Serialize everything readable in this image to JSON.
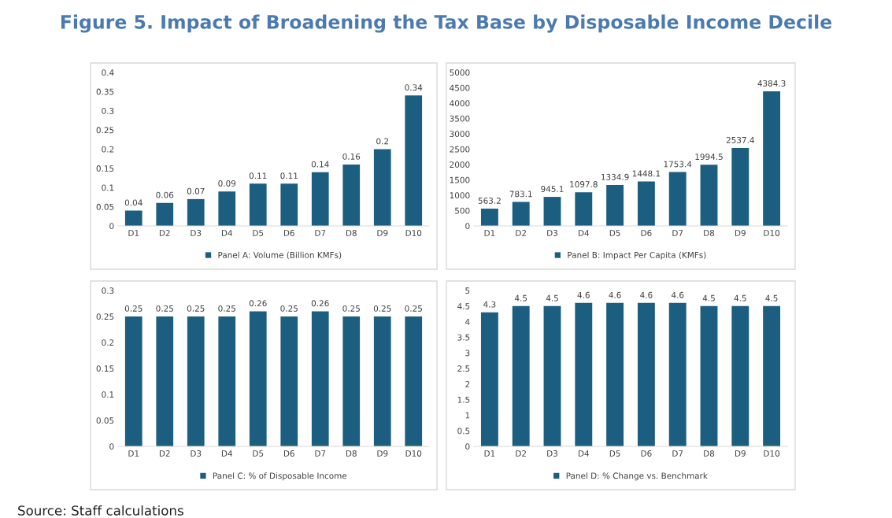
{
  "chart_data": [
    {
      "type": "bar",
      "title": "Figure 5. Impact of Broadening the Tax Base by Disposable Income Decile",
      "categories": [
        "D1",
        "D2",
        "D3",
        "D4",
        "D5",
        "D6",
        "D7",
        "D8",
        "D9",
        "D10"
      ],
      "series": [
        {
          "name": "Panel A: Volume (Billion KMFs)",
          "color": "#1b5e80",
          "values": [
            0.04,
            0.06,
            0.07,
            0.09,
            0.11,
            0.11,
            0.14,
            0.16,
            0.2,
            0.34
          ]
        }
      ],
      "ylim": [
        0,
        0.4
      ],
      "yticks": [
        0,
        0.05,
        0.1,
        0.15,
        0.2,
        0.25,
        0.3,
        0.35,
        0.4
      ],
      "data_labels": true,
      "legend": "bottom",
      "grid": false
    },
    {
      "type": "bar",
      "categories": [
        "D1",
        "D2",
        "D3",
        "D4",
        "D5",
        "D6",
        "D7",
        "D8",
        "D9",
        "D10"
      ],
      "series": [
        {
          "name": "Panel B: Impact Per Capita (KMFs)",
          "color": "#1b5e80",
          "values": [
            563.2,
            783.1,
            945.1,
            1097.8,
            1334.9,
            1448.1,
            1753.4,
            1994.5,
            2537.4,
            4384.3
          ]
        }
      ],
      "ylim": [
        0,
        5000
      ],
      "yticks": [
        0,
        500,
        1000,
        1500,
        2000,
        2500,
        3000,
        3500,
        4000,
        4500,
        5000
      ],
      "data_labels": true,
      "legend": "bottom",
      "grid": false
    },
    {
      "type": "bar",
      "categories": [
        "D1",
        "D2",
        "D3",
        "D4",
        "D5",
        "D6",
        "D7",
        "D8",
        "D9",
        "D10"
      ],
      "series": [
        {
          "name": "Panel C: % of Disposable Income",
          "color": "#1b5e80",
          "values": [
            0.25,
            0.25,
            0.25,
            0.25,
            0.26,
            0.25,
            0.26,
            0.25,
            0.25,
            0.25
          ]
        }
      ],
      "ylim": [
        0,
        0.3
      ],
      "yticks": [
        0,
        0.05,
        0.1,
        0.15,
        0.2,
        0.25,
        0.3
      ],
      "data_labels": true,
      "legend": "bottom",
      "grid": false,
      "annotations": [
        "Source: Staff calculations"
      ]
    },
    {
      "type": "bar",
      "categories": [
        "D1",
        "D2",
        "D3",
        "D4",
        "D5",
        "D6",
        "D7",
        "D8",
        "D9",
        "D10"
      ],
      "series": [
        {
          "name": "Panel D: % Change vs. Benchmark",
          "color": "#1b5e80",
          "values": [
            4.3,
            4.5,
            4.5,
            4.6,
            4.6,
            4.6,
            4.6,
            4.5,
            4.5,
            4.5
          ]
        }
      ],
      "ylim": [
        0,
        5
      ],
      "yticks": [
        0,
        0.5,
        1,
        1.5,
        2,
        2.5,
        3,
        3.5,
        4,
        4.5,
        5
      ],
      "data_labels": true,
      "legend": "bottom",
      "grid": false
    }
  ]
}
